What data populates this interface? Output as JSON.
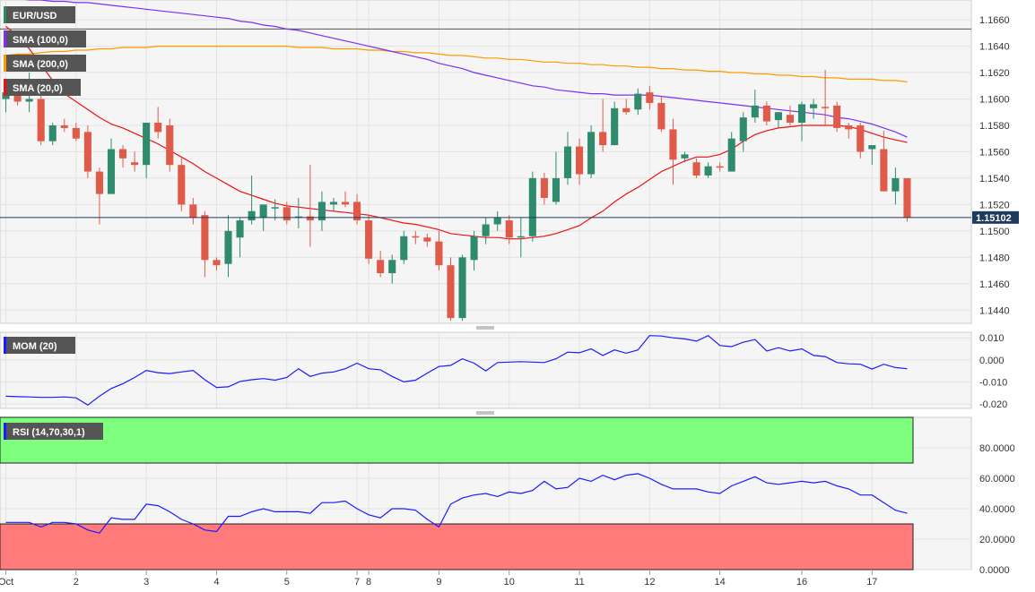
{
  "chart_data": [
    {
      "type": "candlestick",
      "panel": "price",
      "legend": [
        {
          "label": "EUR/USD",
          "color": "#2e8b57"
        },
        {
          "label": "SMA (100,0)",
          "color": "#7b2ff7"
        },
        {
          "label": "SMA (200,0)",
          "color": "#ff9900"
        },
        {
          "label": "SMA (20,0)",
          "color": "#ee1111"
        }
      ],
      "ylim": [
        1.143,
        1.1675
      ],
      "y_ticks": [
        "1.1440",
        "1.1460",
        "1.1480",
        "1.1500",
        "1.1520",
        "1.1540",
        "1.1560",
        "1.1580",
        "1.1600",
        "1.1620",
        "1.1640",
        "1.1660"
      ],
      "current_price": "1.15102",
      "current_value": 1.15102,
      "resistance_level": 1.1653,
      "colors": {
        "up": "#2e8b6e",
        "down": "#e05a4a",
        "sma100": "#7b2ff7",
        "sma200": "#ff9900",
        "sma20": "#ee1111"
      },
      "candles": [
        [
          1.16,
          1.161,
          1.159,
          1.1605
        ],
        [
          1.1605,
          1.1615,
          1.1595,
          1.1598
        ],
        [
          1.1598,
          1.162,
          1.159,
          1.16
        ],
        [
          1.16,
          1.1605,
          1.1565,
          1.1568
        ],
        [
          1.1568,
          1.1582,
          1.1565,
          1.158
        ],
        [
          1.158,
          1.1585,
          1.1575,
          1.1578
        ],
        [
          1.1578,
          1.1582,
          1.1568,
          1.157
        ],
        [
          1.1575,
          1.158,
          1.154,
          1.1545
        ],
        [
          1.1545,
          1.1548,
          1.1505,
          1.1528
        ],
        [
          1.1528,
          1.157,
          1.1528,
          1.1562
        ],
        [
          1.1562,
          1.1565,
          1.1548,
          1.1555
        ],
        [
          1.1552,
          1.156,
          1.1545,
          1.155
        ],
        [
          1.155,
          1.1582,
          1.154,
          1.1582
        ],
        [
          1.1582,
          1.1594,
          1.157,
          1.1575
        ],
        [
          1.158,
          1.1585,
          1.1545,
          1.155
        ],
        [
          1.155,
          1.1555,
          1.1515,
          1.152
        ],
        [
          1.152,
          1.1525,
          1.1505,
          1.151
        ],
        [
          1.1512,
          1.1515,
          1.1465,
          1.1478
        ],
        [
          1.1478,
          1.148,
          1.147,
          1.1474
        ],
        [
          1.1475,
          1.1512,
          1.1465,
          1.15
        ],
        [
          1.1495,
          1.151,
          1.148,
          1.1508
        ],
        [
          1.1508,
          1.1542,
          1.1505,
          1.1515
        ],
        [
          1.151,
          1.152,
          1.15,
          1.152
        ],
        [
          1.1518,
          1.1524,
          1.1508,
          1.1518
        ],
        [
          1.1518,
          1.1522,
          1.1505,
          1.1508
        ],
        [
          1.151,
          1.1525,
          1.1502,
          1.1511
        ],
        [
          1.1511,
          1.155,
          1.1488,
          1.1508
        ],
        [
          1.1508,
          1.153,
          1.15,
          1.1522
        ],
        [
          1.152,
          1.1525,
          1.1515,
          1.1522
        ],
        [
          1.1522,
          1.153,
          1.1518,
          1.152
        ],
        [
          1.1522,
          1.1528,
          1.1505,
          1.1508
        ],
        [
          1.1508,
          1.1512,
          1.1475,
          1.1479
        ],
        [
          1.1478,
          1.1485,
          1.1465,
          1.1468
        ],
        [
          1.1468,
          1.1482,
          1.146,
          1.1478
        ],
        [
          1.1478,
          1.15,
          1.1475,
          1.1496
        ],
        [
          1.1496,
          1.15,
          1.149,
          1.1495
        ],
        [
          1.1495,
          1.1498,
          1.1488,
          1.1492
        ],
        [
          1.1492,
          1.15,
          1.147,
          1.1474
        ],
        [
          1.1474,
          1.148,
          1.1432,
          1.1434
        ],
        [
          1.1434,
          1.1482,
          1.1432,
          1.148
        ],
        [
          1.1478,
          1.15,
          1.147,
          1.1496
        ],
        [
          1.1496,
          1.151,
          1.149,
          1.1505
        ],
        [
          1.1505,
          1.1515,
          1.15,
          1.151
        ],
        [
          1.1508,
          1.1512,
          1.149,
          1.1495
        ],
        [
          1.1495,
          1.151,
          1.148,
          1.1496
        ],
        [
          1.1496,
          1.1545,
          1.1492,
          1.154
        ],
        [
          1.154,
          1.1544,
          1.152,
          1.1525
        ],
        [
          1.1522,
          1.156,
          1.152,
          1.154
        ],
        [
          1.154,
          1.1575,
          1.1535,
          1.1564
        ],
        [
          1.1564,
          1.157,
          1.1535,
          1.1543
        ],
        [
          1.1543,
          1.158,
          1.154,
          1.1575
        ],
        [
          1.1575,
          1.16,
          1.156,
          1.1565
        ],
        [
          1.1565,
          1.1598,
          1.1565,
          1.1593
        ],
        [
          1.1593,
          1.16,
          1.1588,
          1.159
        ],
        [
          1.1592,
          1.1608,
          1.1588,
          1.1604
        ],
        [
          1.1605,
          1.161,
          1.1592,
          1.1597
        ],
        [
          1.1597,
          1.1602,
          1.1575,
          1.1577
        ],
        [
          1.1577,
          1.1585,
          1.1535,
          1.1554
        ],
        [
          1.1555,
          1.156,
          1.1552,
          1.1558
        ],
        [
          1.1552,
          1.1555,
          1.154,
          1.1542
        ],
        [
          1.1542,
          1.1552,
          1.154,
          1.1549
        ],
        [
          1.1549,
          1.1552,
          1.1545,
          1.1548
        ],
        [
          1.1545,
          1.1575,
          1.1545,
          1.157
        ],
        [
          1.1568,
          1.159,
          1.156,
          1.1586
        ],
        [
          1.1586,
          1.1607,
          1.1582,
          1.1595
        ],
        [
          1.1595,
          1.1598,
          1.158,
          1.1583
        ],
        [
          1.1584,
          1.159,
          1.1578,
          1.159
        ],
        [
          1.1588,
          1.1595,
          1.158,
          1.1582
        ],
        [
          1.1582,
          1.1598,
          1.1568,
          1.1596
        ],
        [
          1.1593,
          1.16,
          1.1585,
          1.1596
        ],
        [
          1.1594,
          1.1622,
          1.158,
          1.1593
        ],
        [
          1.1595,
          1.1598,
          1.1575,
          1.1578
        ],
        [
          1.158,
          1.1582,
          1.157,
          1.1577
        ],
        [
          1.158,
          1.1582,
          1.1555,
          1.156
        ],
        [
          1.1562,
          1.1565,
          1.155,
          1.1565
        ],
        [
          1.1562,
          1.1576,
          1.153,
          1.153
        ],
        [
          1.153,
          1.1548,
          1.152,
          1.154
        ],
        [
          1.154,
          1.154,
          1.1507,
          1.151
        ]
      ],
      "sma20": [
        1.1655,
        1.1648,
        1.1638,
        1.1626,
        1.1614,
        1.1604,
        1.1598,
        1.1592,
        1.1586,
        1.1581,
        1.1578,
        1.1574,
        1.157,
        1.1566,
        1.1561,
        1.1556,
        1.1551,
        1.1545,
        1.154,
        1.1535,
        1.153,
        1.1527,
        1.1524,
        1.1521,
        1.1519,
        1.1518,
        1.1517,
        1.1516,
        1.1515,
        1.1514,
        1.1513,
        1.1512,
        1.151,
        1.1508,
        1.1506,
        1.1505,
        1.1503,
        1.1501,
        1.1498,
        1.1497,
        1.1496,
        1.1495,
        1.1495,
        1.1494,
        1.1494,
        1.1495,
        1.1496,
        1.1498,
        1.1501,
        1.1504,
        1.151,
        1.1515,
        1.1522,
        1.1528,
        1.1533,
        1.1539,
        1.1545,
        1.1549,
        1.1553,
        1.1556,
        1.1556,
        1.1558,
        1.1562,
        1.1568,
        1.1573,
        1.1576,
        1.1578,
        1.1579,
        1.158,
        1.158,
        1.158,
        1.158,
        1.1579,
        1.1577,
        1.1574,
        1.1571,
        1.1569,
        1.1567
      ],
      "sma100": [
        1.1676,
        1.1676,
        1.1675,
        1.1675,
        1.1674,
        1.1674,
        1.1673,
        1.1673,
        1.1672,
        1.1671,
        1.167,
        1.1669,
        1.1668,
        1.1667,
        1.1666,
        1.1665,
        1.1664,
        1.1663,
        1.1662,
        1.1661,
        1.1659,
        1.1658,
        1.1656,
        1.1655,
        1.1653,
        1.1652,
        1.165,
        1.1648,
        1.1646,
        1.1644,
        1.1642,
        1.164,
        1.1638,
        1.1636,
        1.1634,
        1.1632,
        1.163,
        1.1627,
        1.1625,
        1.1623,
        1.162,
        1.1618,
        1.1616,
        1.1614,
        1.1612,
        1.161,
        1.1609,
        1.1607,
        1.1606,
        1.1605,
        1.1604,
        1.1604,
        1.1603,
        1.1603,
        1.1603,
        1.1603,
        1.1602,
        1.1601,
        1.16,
        1.1599,
        1.1598,
        1.1597,
        1.1596,
        1.1595,
        1.1594,
        1.1593,
        1.1592,
        1.1591,
        1.159,
        1.1589,
        1.1588,
        1.1586,
        1.1585,
        1.1583,
        1.1581,
        1.1578,
        1.1575,
        1.1571
      ],
      "sma200": [
        1.1633,
        1.1634,
        1.1634,
        1.1635,
        1.1636,
        1.1636,
        1.1637,
        1.1637,
        1.1638,
        1.1638,
        1.1639,
        1.1639,
        1.1639,
        1.164,
        1.164,
        1.164,
        1.164,
        1.164,
        1.164,
        1.164,
        1.164,
        1.164,
        1.164,
        1.164,
        1.164,
        1.1639,
        1.1639,
        1.1639,
        1.1638,
        1.1638,
        1.1638,
        1.1637,
        1.1637,
        1.1636,
        1.1636,
        1.1635,
        1.1635,
        1.1634,
        1.1633,
        1.1633,
        1.1632,
        1.1631,
        1.1631,
        1.163,
        1.163,
        1.1629,
        1.1628,
        1.1628,
        1.1627,
        1.1627,
        1.1626,
        1.1626,
        1.1625,
        1.1625,
        1.1624,
        1.1624,
        1.1623,
        1.1623,
        1.1622,
        1.1622,
        1.1621,
        1.1621,
        1.162,
        1.162,
        1.1619,
        1.1619,
        1.1618,
        1.1618,
        1.1617,
        1.1617,
        1.1616,
        1.1616,
        1.1615,
        1.1615,
        1.1615,
        1.1614,
        1.1614,
        1.1613
      ],
      "x_ticks": [
        {
          "label": "Oct",
          "index": 0.5
        },
        {
          "label": "2",
          "index": 6.5
        },
        {
          "label": "3",
          "index": 12.5
        },
        {
          "label": "4",
          "index": 18.5
        },
        {
          "label": "5",
          "index": 24.5
        },
        {
          "label": "7",
          "index": 30.5
        },
        {
          "label": "8",
          "index": 31.5
        },
        {
          "label": "9",
          "index": 37.5
        },
        {
          "label": "10",
          "index": 43.5
        },
        {
          "label": "11",
          "index": 49.5
        },
        {
          "label": "12",
          "index": 55.5
        },
        {
          "label": "14",
          "index": 61.5
        },
        {
          "label": "16",
          "index": 68.5
        },
        {
          "label": "17",
          "index": 74.5
        }
      ]
    },
    {
      "type": "line",
      "panel": "momentum",
      "legend": {
        "label": "MOM (20)",
        "color": "#1a1aff"
      },
      "ylim": [
        -0.022,
        0.0125
      ],
      "y_ticks": [
        "0.010",
        "0.000",
        "-0.010",
        "-0.020"
      ],
      "values": [
        -0.0165,
        -0.0167,
        -0.0168,
        -0.017,
        -0.017,
        -0.0168,
        -0.0172,
        -0.0205,
        -0.0165,
        -0.013,
        -0.0108,
        -0.008,
        -0.0048,
        -0.0058,
        -0.0062,
        -0.0055,
        -0.0048,
        -0.009,
        -0.0125,
        -0.0122,
        -0.0098,
        -0.009,
        -0.0085,
        -0.0092,
        -0.008,
        -0.004,
        -0.0075,
        -0.006,
        -0.0055,
        -0.004,
        -0.0015,
        -0.004,
        -0.0045,
        -0.0075,
        -0.01,
        -0.0092,
        -0.006,
        -0.003,
        -0.0025,
        0.0005,
        -0.0015,
        -0.005,
        -0.0012,
        -0.001,
        -0.0008,
        -0.001,
        -0.0012,
        0.0005,
        0.0035,
        0.0032,
        0.005,
        0.002,
        0.0045,
        0.003,
        0.0045,
        0.011,
        0.0108,
        0.01,
        0.0095,
        0.0085,
        0.011,
        0.0065,
        0.006,
        0.008,
        0.0092,
        0.004,
        0.0055,
        0.004,
        0.005,
        0.002,
        0.0015,
        -0.0012,
        -0.0018,
        -0.002,
        -0.0042,
        -0.002,
        -0.0035,
        -0.004
      ]
    },
    {
      "type": "line",
      "panel": "rsi",
      "legend": {
        "label": "RSI (14,70,30,1)",
        "color": "#1a1aff"
      },
      "ylim": [
        0,
        100
      ],
      "y_ticks": [
        "80.0000",
        "60.0000",
        "40.0000",
        "20.0000",
        "0.0000"
      ],
      "overbought": 70,
      "oversold": 30,
      "zone_colors": {
        "overbought": "#7dff7d",
        "oversold": "#ff7a7a"
      },
      "values": [
        31,
        31,
        31,
        28,
        31,
        31,
        30,
        26,
        24,
        34,
        33,
        33,
        43,
        42,
        38,
        33,
        30,
        26,
        25,
        35,
        35,
        38,
        40,
        38,
        38,
        38,
        37,
        44,
        44,
        45,
        40,
        36,
        34,
        40,
        40,
        39,
        33,
        28,
        43,
        47,
        49,
        50,
        48,
        51,
        50,
        52,
        58,
        53,
        54,
        60,
        58,
        62,
        59,
        62,
        63,
        60,
        56,
        53,
        53,
        53,
        51,
        50,
        55,
        58,
        61,
        57,
        56,
        57,
        58,
        57,
        58,
        55,
        53,
        49,
        49,
        44,
        39,
        37
      ]
    }
  ]
}
